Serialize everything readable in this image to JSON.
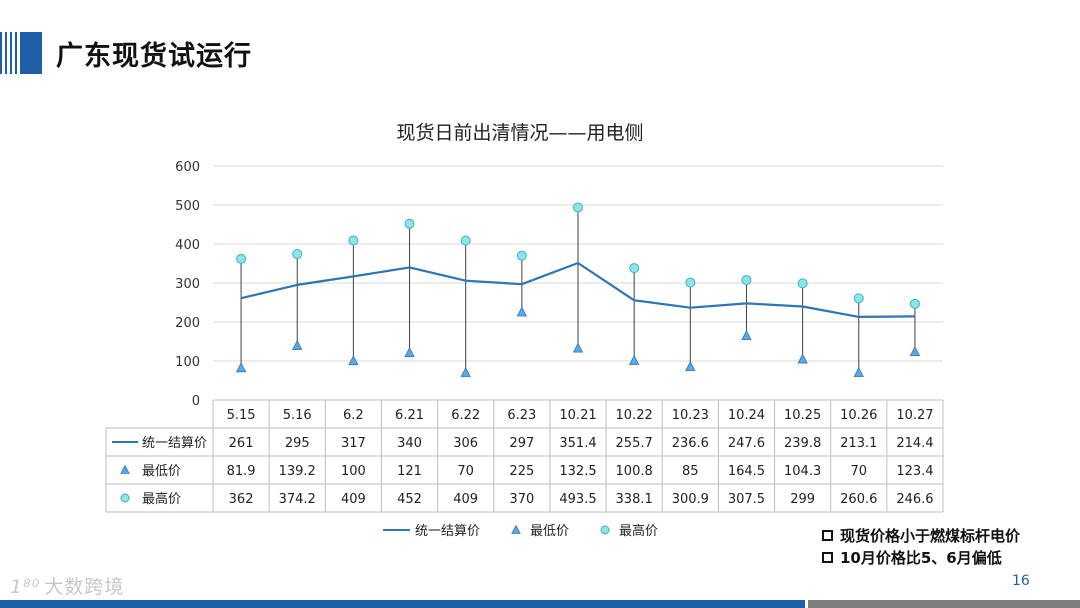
{
  "slide": {
    "title": "广东现货试运行",
    "page_number": "16",
    "watermark": "大数跨境",
    "watermark_logo": "1⁸⁰",
    "notes": [
      "现货价格小于燃煤标杆电价",
      "10月价格比5、6月偏低"
    ]
  },
  "colors": {
    "brand": "#1f5fa8",
    "line": "#2e75b6",
    "min_marker": "#5aa8e6",
    "max_marker": "#8fe3ea",
    "footer_gray": "#7f7f7f"
  },
  "icons": {
    "min_marker": "triangle",
    "max_marker": "circle",
    "note_bullet": "square-outline"
  },
  "chart_data": {
    "type": "line",
    "title": "现货日前出清情况——用电侧",
    "categories": [
      "5.15",
      "5.16",
      "6.2",
      "6.21",
      "6.22",
      "6.23",
      "10.21",
      "10.22",
      "10.23",
      "10.24",
      "10.25",
      "10.26",
      "10.27"
    ],
    "series": [
      {
        "name": "统一结算价",
        "kind": "line",
        "values": [
          261,
          295,
          317,
          340,
          306,
          297,
          351.4,
          255.7,
          236.6,
          247.6,
          239.8,
          213.1,
          214.4
        ]
      },
      {
        "name": "最低价",
        "kind": "marker",
        "marker": "triangle",
        "values": [
          81.9,
          139.2,
          100,
          121,
          70,
          225,
          132.5,
          100.8,
          85,
          164.5,
          104.3,
          70,
          123.4
        ]
      },
      {
        "name": "最高价",
        "kind": "marker",
        "marker": "circle",
        "values": [
          362,
          374.2,
          409,
          452,
          409,
          370,
          493.5,
          338.1,
          300.9,
          307.5,
          299,
          260.6,
          246.6
        ]
      }
    ],
    "y_ticks": [
      0,
      100,
      200,
      300,
      400,
      500,
      600
    ],
    "ylim": [
      0,
      600
    ],
    "grid": true,
    "high_low_lines": true,
    "data_table": true,
    "legend_position": "bottom"
  }
}
